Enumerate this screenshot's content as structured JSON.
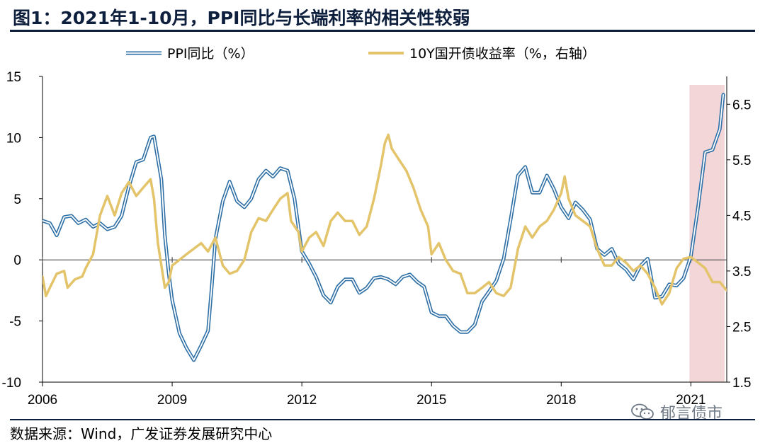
{
  "title": "图1：2021年1-10月，PPI同比与长端利率的相关性较弱",
  "source": "数据来源：Wind，广发证券发展研究中心",
  "watermark": "郁言债市",
  "colors": {
    "ppi": "#2e6fa6",
    "yield": "#e3c46a",
    "highlight": "#f2d6d8",
    "axis": "#000000",
    "title": "#0d1f3c"
  },
  "chart_data": {
    "type": "line",
    "title": "图1：2021年1-10月，PPI同比与长端利率的相关性较弱",
    "x_ticks": [
      "2006",
      "2009",
      "2012",
      "2015",
      "2018",
      "2021"
    ],
    "x_range": [
      2006.0,
      2021.83
    ],
    "left_axis": {
      "ticks": [
        "15",
        "10",
        "5",
        "0",
        "-5",
        "-10"
      ],
      "range": [
        -10,
        15
      ],
      "label": "PPI同比（%）"
    },
    "right_axis": {
      "ticks": [
        "6.5",
        "5.5",
        "4.5",
        "3.5",
        "2.5",
        "1.5"
      ],
      "range": [
        1.5,
        7.0
      ],
      "label": "10Y国开债收益率（%，右轴）"
    },
    "highlight_range": [
      2021.0,
      2021.83
    ],
    "legend_position": "top",
    "series": [
      {
        "name": "PPI同比（%）",
        "axis": "left",
        "style": "double-line",
        "points": [
          [
            2006.0,
            3.2
          ],
          [
            2006.17,
            3.0
          ],
          [
            2006.33,
            2.0
          ],
          [
            2006.5,
            3.5
          ],
          [
            2006.67,
            3.6
          ],
          [
            2006.83,
            3.0
          ],
          [
            2007.0,
            3.3
          ],
          [
            2007.17,
            2.7
          ],
          [
            2007.33,
            3.0
          ],
          [
            2007.5,
            2.5
          ],
          [
            2007.67,
            2.7
          ],
          [
            2007.83,
            3.6
          ],
          [
            2008.0,
            6.0
          ],
          [
            2008.17,
            8.0
          ],
          [
            2008.33,
            8.2
          ],
          [
            2008.5,
            10.0
          ],
          [
            2008.58,
            10.1
          ],
          [
            2008.75,
            6.6
          ],
          [
            2008.83,
            2.0
          ],
          [
            2008.92,
            -1.1
          ],
          [
            2009.0,
            -3.3
          ],
          [
            2009.17,
            -6.0
          ],
          [
            2009.33,
            -7.2
          ],
          [
            2009.5,
            -8.2
          ],
          [
            2009.67,
            -7.0
          ],
          [
            2009.83,
            -5.8
          ],
          [
            2009.92,
            -2.0
          ],
          [
            2010.0,
            1.7
          ],
          [
            2010.17,
            4.8
          ],
          [
            2010.33,
            6.4
          ],
          [
            2010.5,
            4.8
          ],
          [
            2010.67,
            4.3
          ],
          [
            2010.83,
            5.0
          ],
          [
            2011.0,
            6.6
          ],
          [
            2011.17,
            7.3
          ],
          [
            2011.33,
            6.8
          ],
          [
            2011.5,
            7.5
          ],
          [
            2011.67,
            7.3
          ],
          [
            2011.83,
            5.0
          ],
          [
            2012.0,
            0.7
          ],
          [
            2012.17,
            -0.3
          ],
          [
            2012.33,
            -1.4
          ],
          [
            2012.5,
            -2.9
          ],
          [
            2012.67,
            -3.5
          ],
          [
            2012.83,
            -2.2
          ],
          [
            2013.0,
            -1.6
          ],
          [
            2013.17,
            -1.6
          ],
          [
            2013.33,
            -2.7
          ],
          [
            2013.5,
            -2.3
          ],
          [
            2013.67,
            -1.5
          ],
          [
            2013.83,
            -1.4
          ],
          [
            2014.0,
            -1.6
          ],
          [
            2014.17,
            -2.0
          ],
          [
            2014.33,
            -1.4
          ],
          [
            2014.5,
            -1.2
          ],
          [
            2014.67,
            -1.8
          ],
          [
            2014.83,
            -2.2
          ],
          [
            2015.0,
            -4.3
          ],
          [
            2015.17,
            -4.6
          ],
          [
            2015.33,
            -4.6
          ],
          [
            2015.5,
            -5.4
          ],
          [
            2015.67,
            -5.9
          ],
          [
            2015.83,
            -5.9
          ],
          [
            2016.0,
            -5.3
          ],
          [
            2016.17,
            -3.4
          ],
          [
            2016.33,
            -2.6
          ],
          [
            2016.5,
            -1.7
          ],
          [
            2016.67,
            0.1
          ],
          [
            2016.83,
            3.3
          ],
          [
            2017.0,
            6.9
          ],
          [
            2017.17,
            7.6
          ],
          [
            2017.33,
            5.5
          ],
          [
            2017.5,
            5.5
          ],
          [
            2017.67,
            6.9
          ],
          [
            2017.83,
            5.8
          ],
          [
            2018.0,
            4.3
          ],
          [
            2018.17,
            3.4
          ],
          [
            2018.33,
            4.7
          ],
          [
            2018.5,
            4.1
          ],
          [
            2018.67,
            3.3
          ],
          [
            2018.83,
            0.9
          ],
          [
            2019.0,
            0.4
          ],
          [
            2019.17,
            0.9
          ],
          [
            2019.33,
            -0.3
          ],
          [
            2019.5,
            -0.8
          ],
          [
            2019.67,
            -1.6
          ],
          [
            2019.83,
            -0.5
          ],
          [
            2020.0,
            0.1
          ],
          [
            2020.17,
            -3.1
          ],
          [
            2020.33,
            -3.0
          ],
          [
            2020.5,
            -2.0
          ],
          [
            2020.67,
            -2.1
          ],
          [
            2020.83,
            -1.5
          ],
          [
            2021.0,
            0.3
          ],
          [
            2021.17,
            4.4
          ],
          [
            2021.33,
            8.8
          ],
          [
            2021.5,
            9.0
          ],
          [
            2021.67,
            10.7
          ],
          [
            2021.75,
            13.5
          ]
        ]
      },
      {
        "name": "10Y国开债收益率（%，右轴）",
        "axis": "right",
        "style": "solid",
        "points": [
          [
            2006.0,
            3.4
          ],
          [
            2006.08,
            3.05
          ],
          [
            2006.17,
            3.2
          ],
          [
            2006.33,
            3.45
          ],
          [
            2006.5,
            3.5
          ],
          [
            2006.58,
            3.2
          ],
          [
            2006.75,
            3.35
          ],
          [
            2006.92,
            3.4
          ],
          [
            2007.0,
            3.55
          ],
          [
            2007.17,
            3.8
          ],
          [
            2007.33,
            4.5
          ],
          [
            2007.5,
            4.85
          ],
          [
            2007.67,
            4.5
          ],
          [
            2007.83,
            4.9
          ],
          [
            2008.0,
            5.1
          ],
          [
            2008.17,
            4.85
          ],
          [
            2008.33,
            5.0
          ],
          [
            2008.5,
            5.15
          ],
          [
            2008.58,
            4.8
          ],
          [
            2008.67,
            4.0
          ],
          [
            2008.75,
            3.6
          ],
          [
            2008.83,
            3.2
          ],
          [
            2008.92,
            3.3
          ],
          [
            2009.0,
            3.6
          ],
          [
            2009.17,
            3.7
          ],
          [
            2009.33,
            3.8
          ],
          [
            2009.5,
            3.9
          ],
          [
            2009.67,
            4.0
          ],
          [
            2009.83,
            3.85
          ],
          [
            2010.0,
            4.1
          ],
          [
            2010.17,
            3.6
          ],
          [
            2010.33,
            3.45
          ],
          [
            2010.5,
            3.5
          ],
          [
            2010.67,
            3.7
          ],
          [
            2010.83,
            4.2
          ],
          [
            2011.0,
            4.45
          ],
          [
            2011.17,
            4.4
          ],
          [
            2011.33,
            4.6
          ],
          [
            2011.5,
            4.8
          ],
          [
            2011.67,
            4.9
          ],
          [
            2011.75,
            4.4
          ],
          [
            2011.92,
            4.2
          ],
          [
            2012.0,
            3.85
          ],
          [
            2012.17,
            4.1
          ],
          [
            2012.33,
            4.2
          ],
          [
            2012.5,
            3.95
          ],
          [
            2012.67,
            4.4
          ],
          [
            2012.83,
            4.55
          ],
          [
            2013.0,
            4.4
          ],
          [
            2013.17,
            4.4
          ],
          [
            2013.33,
            4.15
          ],
          [
            2013.5,
            4.3
          ],
          [
            2013.67,
            4.8
          ],
          [
            2013.83,
            5.4
          ],
          [
            2013.92,
            5.8
          ],
          [
            2014.0,
            5.95
          ],
          [
            2014.08,
            5.7
          ],
          [
            2014.25,
            5.5
          ],
          [
            2014.42,
            5.3
          ],
          [
            2014.58,
            5.0
          ],
          [
            2014.75,
            4.6
          ],
          [
            2014.92,
            4.3
          ],
          [
            2015.0,
            3.8
          ],
          [
            2015.17,
            4.0
          ],
          [
            2015.33,
            3.7
          ],
          [
            2015.5,
            3.5
          ],
          [
            2015.67,
            3.45
          ],
          [
            2015.83,
            3.1
          ],
          [
            2016.0,
            3.1
          ],
          [
            2016.17,
            3.2
          ],
          [
            2016.33,
            3.3
          ],
          [
            2016.5,
            3.1
          ],
          [
            2016.67,
            3.05
          ],
          [
            2016.83,
            3.2
          ],
          [
            2017.0,
            3.9
          ],
          [
            2017.17,
            4.3
          ],
          [
            2017.33,
            4.1
          ],
          [
            2017.5,
            4.3
          ],
          [
            2017.67,
            4.4
          ],
          [
            2017.83,
            4.6
          ],
          [
            2018.0,
            4.9
          ],
          [
            2018.08,
            5.2
          ],
          [
            2018.17,
            4.8
          ],
          [
            2018.33,
            4.5
          ],
          [
            2018.5,
            4.4
          ],
          [
            2018.67,
            4.3
          ],
          [
            2018.83,
            3.9
          ],
          [
            2019.0,
            3.6
          ],
          [
            2019.17,
            3.6
          ],
          [
            2019.33,
            3.75
          ],
          [
            2019.5,
            3.65
          ],
          [
            2019.67,
            3.5
          ],
          [
            2019.83,
            3.6
          ],
          [
            2020.0,
            3.45
          ],
          [
            2020.17,
            3.2
          ],
          [
            2020.33,
            2.9
          ],
          [
            2020.5,
            3.1
          ],
          [
            2020.67,
            3.55
          ],
          [
            2020.83,
            3.72
          ],
          [
            2021.0,
            3.75
          ],
          [
            2021.17,
            3.65
          ],
          [
            2021.33,
            3.55
          ],
          [
            2021.5,
            3.3
          ],
          [
            2021.67,
            3.3
          ],
          [
            2021.83,
            3.15
          ]
        ]
      }
    ]
  }
}
